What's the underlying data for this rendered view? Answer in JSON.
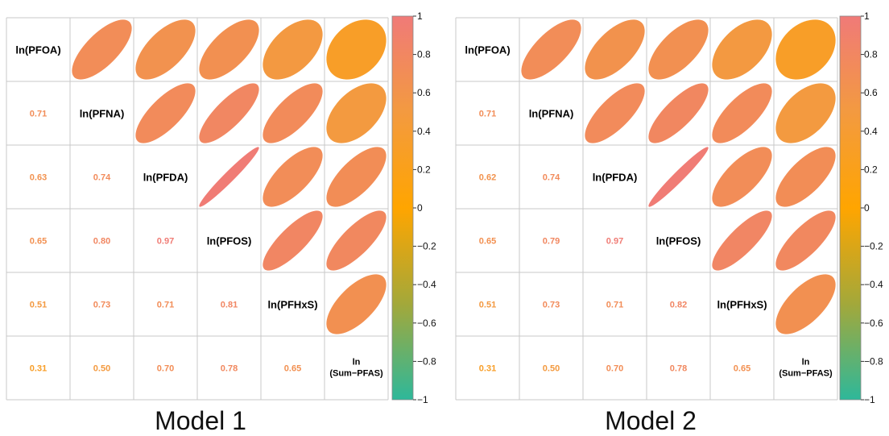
{
  "chart_data": [
    {
      "type": "heatmap",
      "panel_title": "Model 1",
      "variables": [
        "ln(PFOA)",
        "ln(PFNA)",
        "ln(PFDA)",
        "ln(PFOS)",
        "ln(PFHxS)",
        "ln\n(Sum−PFAS)"
      ],
      "correlation_matrix": [
        [
          1.0,
          0.71,
          0.63,
          0.65,
          0.51,
          0.31
        ],
        [
          0.71,
          1.0,
          0.74,
          0.8,
          0.73,
          0.5
        ],
        [
          0.63,
          0.74,
          1.0,
          0.97,
          0.71,
          0.7
        ],
        [
          0.65,
          0.8,
          0.97,
          1.0,
          0.81,
          0.78
        ],
        [
          0.51,
          0.73,
          0.71,
          0.81,
          1.0,
          0.65
        ],
        [
          0.31,
          0.5,
          0.7,
          0.78,
          0.65,
          1.0
        ]
      ],
      "lower_labels": [
        {
          "row": 1,
          "col": 0,
          "text": "0.71"
        },
        {
          "row": 2,
          "col": 0,
          "text": "0.63"
        },
        {
          "row": 2,
          "col": 1,
          "text": "0.74"
        },
        {
          "row": 3,
          "col": 0,
          "text": "0.65"
        },
        {
          "row": 3,
          "col": 1,
          "text": "0.80"
        },
        {
          "row": 3,
          "col": 2,
          "text": "0.97"
        },
        {
          "row": 4,
          "col": 0,
          "text": "0.51"
        },
        {
          "row": 4,
          "col": 1,
          "text": "0.73"
        },
        {
          "row": 4,
          "col": 2,
          "text": "0.71"
        },
        {
          "row": 4,
          "col": 3,
          "text": "0.81"
        },
        {
          "row": 5,
          "col": 0,
          "text": "0.31"
        },
        {
          "row": 5,
          "col": 1,
          "text": "0.50"
        },
        {
          "row": 5,
          "col": 2,
          "text": "0.70"
        },
        {
          "row": 5,
          "col": 3,
          "text": "0.78"
        },
        {
          "row": 5,
          "col": 4,
          "text": "0.65"
        }
      ],
      "colorbar": {
        "range": [
          -1,
          1
        ],
        "ticks": [
          "1",
          "0.8",
          "0.6",
          "0.4",
          "0.2",
          "0",
          "−0.2",
          "−0.4",
          "−0.6",
          "−0.8",
          "−1"
        ]
      }
    },
    {
      "type": "heatmap",
      "panel_title": "Model 2",
      "variables": [
        "ln(PFOA)",
        "ln(PFNA)",
        "ln(PFDA)",
        "ln(PFOS)",
        "ln(PFHxS)",
        "ln\n(Sum−PFAS)"
      ],
      "correlation_matrix": [
        [
          1.0,
          0.71,
          0.62,
          0.65,
          0.51,
          0.31
        ],
        [
          0.71,
          1.0,
          0.74,
          0.79,
          0.73,
          0.5
        ],
        [
          0.62,
          0.74,
          1.0,
          0.97,
          0.71,
          0.7
        ],
        [
          0.65,
          0.79,
          0.97,
          1.0,
          0.82,
          0.78
        ],
        [
          0.51,
          0.73,
          0.71,
          0.82,
          1.0,
          0.65
        ],
        [
          0.31,
          0.5,
          0.7,
          0.78,
          0.65,
          1.0
        ]
      ],
      "lower_labels": [
        {
          "row": 1,
          "col": 0,
          "text": "0.71"
        },
        {
          "row": 2,
          "col": 0,
          "text": "0.62"
        },
        {
          "row": 2,
          "col": 1,
          "text": "0.74"
        },
        {
          "row": 3,
          "col": 0,
          "text": "0.65"
        },
        {
          "row": 3,
          "col": 1,
          "text": "0.79"
        },
        {
          "row": 3,
          "col": 2,
          "text": "0.97"
        },
        {
          "row": 4,
          "col": 0,
          "text": "0.51"
        },
        {
          "row": 4,
          "col": 1,
          "text": "0.73"
        },
        {
          "row": 4,
          "col": 2,
          "text": "0.71"
        },
        {
          "row": 4,
          "col": 3,
          "text": "0.82"
        },
        {
          "row": 5,
          "col": 0,
          "text": "0.31"
        },
        {
          "row": 5,
          "col": 1,
          "text": "0.50"
        },
        {
          "row": 5,
          "col": 2,
          "text": "0.70"
        },
        {
          "row": 5,
          "col": 3,
          "text": "0.78"
        },
        {
          "row": 5,
          "col": 4,
          "text": "0.65"
        }
      ],
      "colorbar": {
        "range": [
          -1,
          1
        ],
        "ticks": [
          "1",
          "0.8",
          "0.6",
          "0.4",
          "0.2",
          "0",
          "−0.2",
          "−0.4",
          "−0.6",
          "−0.8",
          "−1"
        ]
      }
    }
  ],
  "colors": {
    "positive_high": "#f07a78",
    "positive_mid": "#f5a623",
    "zero": "#ffa500",
    "negative_mid": "#a3a83a",
    "negative_high": "#2eb89a",
    "grid_line": "#c8c8c8",
    "label_text": "#000000"
  }
}
